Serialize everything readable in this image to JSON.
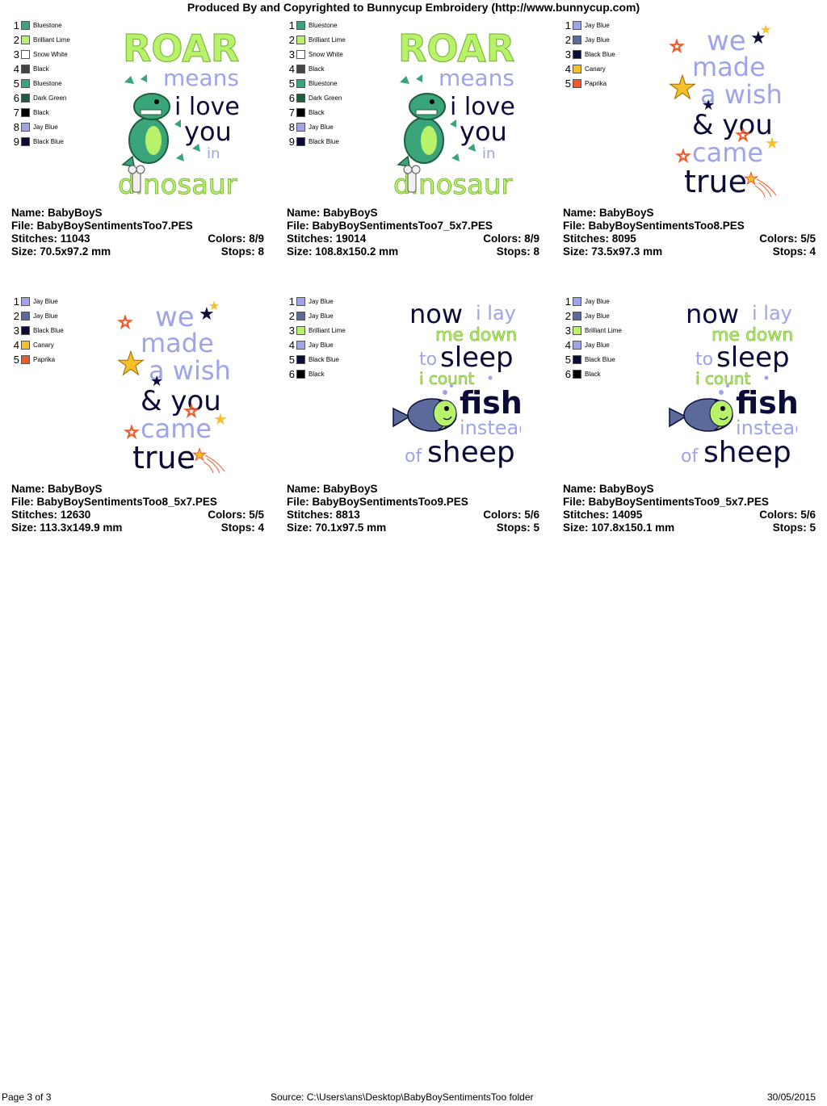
{
  "header": {
    "title": "Produced By and Copyrighted to Bunnycup Embroidery (http://www.bunnycup.com)"
  },
  "designs": [
    {
      "name_label": "Name: BabyBoyS",
      "file_label": "File: BabyBoySentimentsToo7.PES",
      "stitches_label": "Stitches: 11043",
      "colors_label": "Colors: 8/9",
      "size_label": "Size: 70.5x97.2 mm",
      "stops_label": "Stops: 8",
      "art": "roar",
      "threads": [
        {
          "num": "1",
          "name": "Bluestone",
          "color": "#3aa57a"
        },
        {
          "num": "2",
          "name": "Brilliant Lime",
          "color": "#b8f26a"
        },
        {
          "num": "3",
          "name": "Snow White",
          "color": "#ffffff"
        },
        {
          "num": "4",
          "name": "Black",
          "color": "#444444"
        },
        {
          "num": "5",
          "name": "Bluestone",
          "color": "#3aa57a"
        },
        {
          "num": "6",
          "name": "Dark Green",
          "color": "#1f5e3c"
        },
        {
          "num": "7",
          "name": "Black",
          "color": "#000000"
        },
        {
          "num": "8",
          "name": "Jay Blue",
          "color": "#9fa3ea"
        },
        {
          "num": "9",
          "name": "Black Blue",
          "color": "#0b0b3a"
        }
      ]
    },
    {
      "name_label": "Name: BabyBoyS",
      "file_label": "File: BabyBoySentimentsToo7_5x7.PES",
      "stitches_label": "Stitches: 19014",
      "colors_label": "Colors: 8/9",
      "size_label": "Size: 108.8x150.2 mm",
      "stops_label": "Stops: 8",
      "art": "roar",
      "threads": [
        {
          "num": "1",
          "name": "Bluestone",
          "color": "#3aa57a"
        },
        {
          "num": "2",
          "name": "Brilliant Lime",
          "color": "#b8f26a"
        },
        {
          "num": "3",
          "name": "Snow White",
          "color": "#ffffff"
        },
        {
          "num": "4",
          "name": "Black",
          "color": "#444444"
        },
        {
          "num": "5",
          "name": "Bluestone",
          "color": "#3aa57a"
        },
        {
          "num": "6",
          "name": "Dark Green",
          "color": "#1f5e3c"
        },
        {
          "num": "7",
          "name": "Black",
          "color": "#000000"
        },
        {
          "num": "8",
          "name": "Jay Blue",
          "color": "#9fa3ea"
        },
        {
          "num": "9",
          "name": "Black Blue",
          "color": "#0b0b3a"
        }
      ]
    },
    {
      "name_label": "Name: BabyBoyS",
      "file_label": "File: BabyBoySentimentsToo8.PES",
      "stitches_label": "Stitches: 8095",
      "colors_label": "Colors: 5/5",
      "size_label": "Size: 73.5x97.3 mm",
      "stops_label": "Stops: 4",
      "art": "wish",
      "threads": [
        {
          "num": "1",
          "name": "Jay Blue",
          "color": "#9fa3ea"
        },
        {
          "num": "2",
          "name": "Jay Blue",
          "color": "#5b6a9a"
        },
        {
          "num": "3",
          "name": "Black Blue",
          "color": "#0b0b3a"
        },
        {
          "num": "4",
          "name": "Canary",
          "color": "#f5c12b"
        },
        {
          "num": "5",
          "name": "Paprika",
          "color": "#ee5a2a"
        }
      ]
    },
    {
      "name_label": "Name: BabyBoyS",
      "file_label": "File: BabyBoySentimentsToo8_5x7.PES",
      "stitches_label": "Stitches: 12630",
      "colors_label": "Colors: 5/5",
      "size_label": "Size: 113.3x149.9 mm",
      "stops_label": "Stops: 4",
      "art": "wish",
      "threads": [
        {
          "num": "1",
          "name": "Jay Blue",
          "color": "#9fa3ea"
        },
        {
          "num": "2",
          "name": "Jay Blue",
          "color": "#5b6a9a"
        },
        {
          "num": "3",
          "name": "Black Blue",
          "color": "#0b0b3a"
        },
        {
          "num": "4",
          "name": "Canary",
          "color": "#f5c12b"
        },
        {
          "num": "5",
          "name": "Paprika",
          "color": "#ee5a2a"
        }
      ]
    },
    {
      "name_label": "Name: BabyBoyS",
      "file_label": "File: BabyBoySentimentsToo9.PES",
      "stitches_label": "Stitches: 8813",
      "colors_label": "Colors: 5/6",
      "size_label": "Size: 70.1x97.5 mm",
      "stops_label": "Stops: 5",
      "art": "fish",
      "threads": [
        {
          "num": "1",
          "name": "Jay Blue",
          "color": "#9fa3ea"
        },
        {
          "num": "2",
          "name": "Jay Blue",
          "color": "#5b6a9a"
        },
        {
          "num": "3",
          "name": "Brilliant Lime",
          "color": "#b8f26a"
        },
        {
          "num": "4",
          "name": "Jay Blue",
          "color": "#9fa3ea"
        },
        {
          "num": "5",
          "name": "Black Blue",
          "color": "#0b0b3a"
        },
        {
          "num": "6",
          "name": "Black",
          "color": "#000000"
        }
      ]
    },
    {
      "name_label": "Name: BabyBoyS",
      "file_label": "File: BabyBoySentimentsToo9_5x7.PES",
      "stitches_label": "Stitches: 14095",
      "colors_label": "Colors: 5/6",
      "size_label": "Size: 107.8x150.1 mm",
      "stops_label": "Stops: 5",
      "art": "fish",
      "threads": [
        {
          "num": "1",
          "name": "Jay Blue",
          "color": "#9fa3ea"
        },
        {
          "num": "2",
          "name": "Jay Blue",
          "color": "#5b6a9a"
        },
        {
          "num": "3",
          "name": "Brilliant Lime",
          "color": "#b8f26a"
        },
        {
          "num": "4",
          "name": "Jay Blue",
          "color": "#9fa3ea"
        },
        {
          "num": "5",
          "name": "Black Blue",
          "color": "#0b0b3a"
        },
        {
          "num": "6",
          "name": "Black",
          "color": "#000000"
        }
      ]
    }
  ],
  "art_text": {
    "roar": {
      "l1": "ROAR",
      "l2": "means",
      "l3": "i love",
      "l4": "you",
      "l5": "in",
      "l6": "dinosaur"
    },
    "wish": {
      "l1": "we",
      "l2": "made",
      "l3": "a wish",
      "l4": "& you",
      "l5": "came",
      "l6": "true"
    },
    "fish": {
      "l1": "now",
      "l1b": "i lay",
      "l2": "me down",
      "l3a": "to",
      "l3b": "sleep",
      "l4": "i count",
      "l5": "fish",
      "l6": "instead",
      "l7a": "of",
      "l7b": "sheep"
    }
  },
  "footer": {
    "page": "Page 3 of 3",
    "source": "Source: C:\\Users\\ans\\Desktop\\BabyBoySentimentsToo folder",
    "date": "30/05/2015"
  }
}
